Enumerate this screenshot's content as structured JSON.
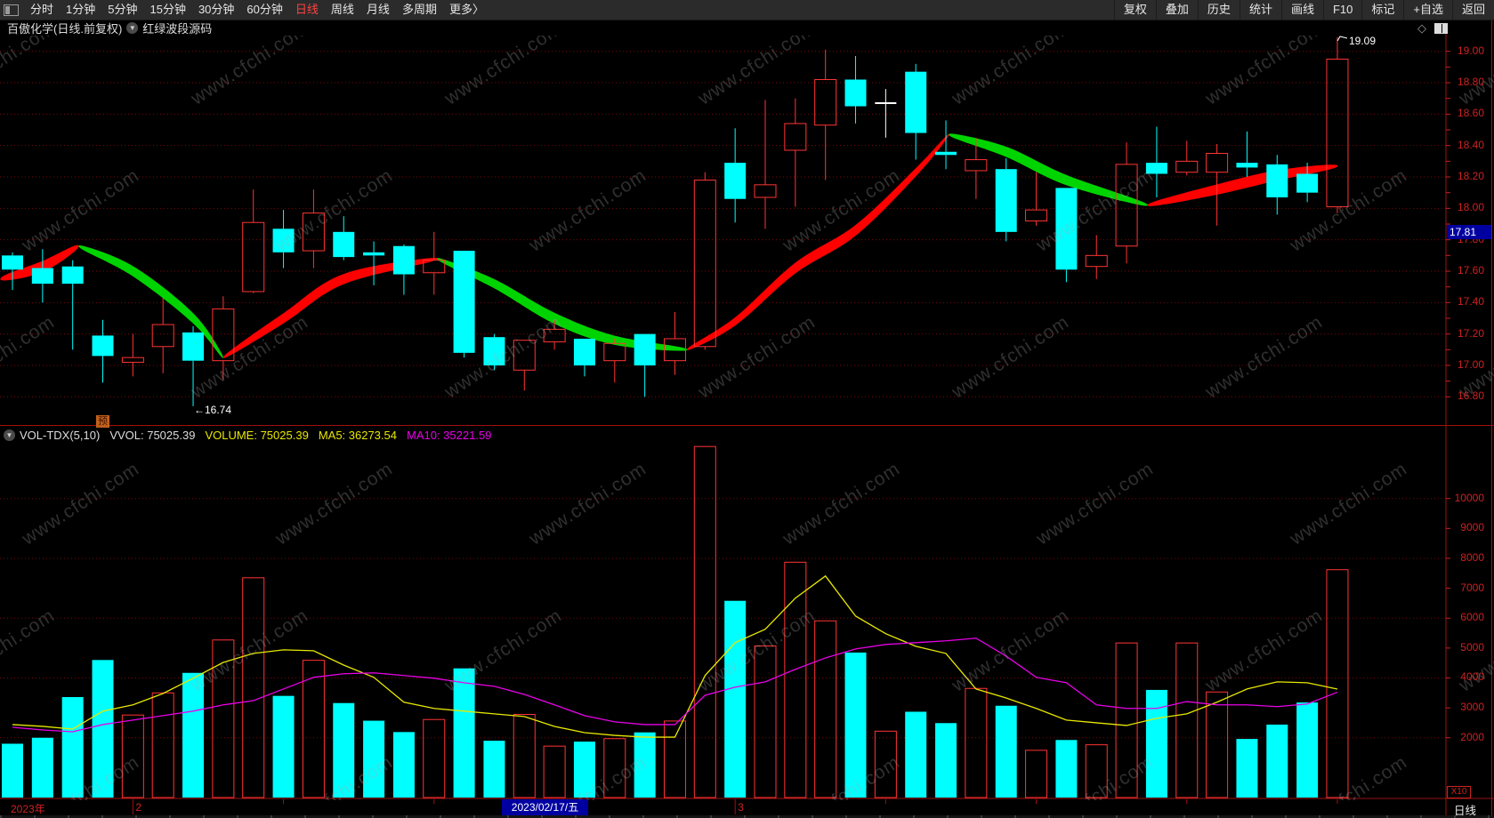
{
  "app": {
    "watermark": "www.cfchi.com"
  },
  "toolbar": {
    "left_items": [
      "分时",
      "1分钟",
      "5分钟",
      "15分钟",
      "30分钟",
      "60分钟",
      "日线",
      "周线",
      "月线",
      "多周期",
      "更多〉"
    ],
    "active_item": "日线",
    "right_items": [
      "复权",
      "叠加",
      "历史",
      "统计",
      "画线",
      "F10",
      "标记",
      "+自选",
      "返回"
    ]
  },
  "title_row": {
    "title": "百傲化学(日线.前复权)",
    "indicator_source": "红绿波段源码"
  },
  "icons": {
    "dropdown": "▼",
    "diamond": "◇"
  },
  "price_pane": {
    "axis_labels": [
      "19.00",
      "18.80",
      "18.60",
      "18.40",
      "18.20",
      "18.00",
      "17.80",
      "17.60",
      "17.40",
      "17.20",
      "17.00",
      "16.80"
    ],
    "price_tag": "17.81",
    "high_annotation": "19.09",
    "low_annotation": "←16.74",
    "signal_badge": "预"
  },
  "volume_pane": {
    "header": {
      "indicator": "VOL-TDX(5,10)",
      "vvol": "VVOL: 75025.39",
      "volume": "VOLUME: 75025.39",
      "ma5": "MA5: 36273.54",
      "ma10": "MA10: 35221.59"
    },
    "axis_labels": [
      "10000",
      "9000",
      "8000",
      "7000",
      "6000",
      "5000",
      "4000",
      "3000",
      "2000"
    ],
    "multiplier": "X10"
  },
  "date_axis": {
    "year_label": "2023年",
    "month_labels": [
      {
        "text": "2",
        "candle_index": 4
      },
      {
        "text": "3",
        "candle_index": 24
      }
    ],
    "minor_tick_indices": [
      9,
      14,
      19,
      29,
      34,
      39,
      44
    ],
    "highlight_date": {
      "text": "2023/02/17/五",
      "candle_index": 16
    }
  },
  "status_bar": {
    "period": "日线"
  },
  "colors": {
    "up": "#ff3434",
    "down": "#00ffff",
    "flat": "#ffffff",
    "ribbon_up": "#ff0000",
    "ribbon_down": "#00d400",
    "ma5": "#e8e800",
    "ma10": "#e800e8",
    "grid": "#7d0606",
    "axis_line": "#a01010",
    "axis_text": "#cc2222",
    "highlight_bg": "#0000a0",
    "badge_bg": "#c2601a",
    "toolbar_active": "#ff4242"
  },
  "chart_data": {
    "type": "candlestick+volume",
    "price_ylim": [
      16.62,
      19.12
    ],
    "price_tick_step": 0.2,
    "volume_ylim": [
      0,
      12400
    ],
    "volume_tick_step": 1000,
    "grid": "dotted",
    "candles": [
      [
        17.7,
        17.72,
        17.48,
        17.61,
        1800
      ],
      [
        17.62,
        17.74,
        17.4,
        17.52,
        2000
      ],
      [
        17.63,
        17.67,
        17.1,
        17.52,
        3360
      ],
      [
        17.19,
        17.29,
        16.89,
        17.06,
        4600
      ],
      [
        17.02,
        17.2,
        16.93,
        17.05,
        2760
      ],
      [
        17.12,
        17.43,
        16.95,
        17.26,
        3500
      ],
      [
        17.21,
        17.25,
        16.74,
        17.03,
        4170
      ],
      [
        17.03,
        17.44,
        16.91,
        17.36,
        5270
      ],
      [
        17.47,
        18.12,
        17.46,
        17.91,
        7350
      ],
      [
        17.87,
        17.99,
        17.62,
        17.72,
        3400
      ],
      [
        17.73,
        18.12,
        17.62,
        17.97,
        4590
      ],
      [
        17.85,
        17.95,
        17.67,
        17.69,
        3160
      ],
      [
        17.72,
        17.79,
        17.51,
        17.7,
        2570
      ],
      [
        17.76,
        17.77,
        17.45,
        17.58,
        2190
      ],
      [
        17.59,
        17.85,
        17.45,
        17.67,
        2610
      ],
      [
        17.73,
        17.73,
        17.05,
        17.08,
        4320
      ],
      [
        17.18,
        17.2,
        16.97,
        17.0,
        1900
      ],
      [
        16.97,
        17.16,
        16.84,
        17.16,
        2780
      ],
      [
        17.15,
        17.29,
        17.1,
        17.23,
        1720
      ],
      [
        17.17,
        17.17,
        16.93,
        17.0,
        1870
      ],
      [
        17.03,
        17.17,
        16.89,
        17.14,
        1970
      ],
      [
        17.2,
        17.2,
        16.8,
        17.0,
        2180
      ],
      [
        17.03,
        17.34,
        16.94,
        17.17,
        2560
      ],
      [
        17.12,
        18.23,
        17.1,
        18.18,
        11740
      ],
      [
        18.29,
        18.51,
        17.91,
        18.06,
        6580
      ],
      [
        18.07,
        18.69,
        17.87,
        18.15,
        5070
      ],
      [
        18.37,
        18.7,
        18.01,
        18.54,
        7870
      ],
      [
        18.53,
        19.01,
        18.18,
        18.82,
        5910
      ],
      [
        18.82,
        18.97,
        18.54,
        18.65,
        4850
      ],
      [
        18.67,
        18.76,
        18.45,
        18.67,
        2220
      ],
      [
        18.87,
        18.92,
        18.31,
        18.48,
        2870
      ],
      [
        18.36,
        18.56,
        18.25,
        18.34,
        2490
      ],
      [
        18.24,
        18.45,
        18.06,
        18.31,
        3650
      ],
      [
        18.25,
        18.32,
        17.79,
        17.85,
        3070
      ],
      [
        17.92,
        18.23,
        17.89,
        17.99,
        1580
      ],
      [
        18.13,
        18.13,
        17.53,
        17.61,
        1925
      ],
      [
        17.63,
        17.83,
        17.55,
        17.7,
        1765
      ],
      [
        17.76,
        18.42,
        17.65,
        18.28,
        5170
      ],
      [
        18.29,
        18.52,
        18.07,
        18.22,
        3600
      ],
      [
        18.23,
        18.43,
        18.21,
        18.3,
        5170
      ],
      [
        18.23,
        18.41,
        17.89,
        18.35,
        3530
      ],
      [
        18.29,
        18.49,
        18.2,
        18.26,
        1960
      ],
      [
        18.28,
        18.34,
        17.96,
        18.07,
        2440
      ],
      [
        18.22,
        18.29,
        18.04,
        18.1,
        3180
      ],
      [
        18.01,
        19.09,
        17.97,
        18.95,
        7620
      ]
    ],
    "vol_ma5": [
      2440,
      2380,
      2290,
      2890,
      3100,
      3480,
      3990,
      4520,
      4820,
      4940,
      4910,
      4430,
      4020,
      3190,
      2980,
      2890,
      2800,
      2710,
      2380,
      2170,
      2080,
      2020,
      2020,
      4080,
      5180,
      5630,
      6670,
      7410,
      6070,
      5480,
      5060,
      4820,
      3630,
      3330,
      2980,
      2590,
      2500,
      2410,
      2650,
      2800,
      3190,
      3630,
      3870,
      3840,
      3627
    ],
    "vol_ma10": [
      2350,
      2260,
      2200,
      2440,
      2590,
      2740,
      2890,
      3100,
      3240,
      3630,
      4020,
      4140,
      4170,
      4080,
      3990,
      3840,
      3720,
      3450,
      3100,
      2740,
      2530,
      2440,
      2440,
      3420,
      3690,
      3870,
      4290,
      4670,
      4970,
      5120,
      5180,
      5240,
      5330,
      4730,
      4020,
      3840,
      3100,
      2980,
      2980,
      3210,
      3100,
      3100,
      3040,
      3130,
      3522
    ],
    "ribbon": [
      {
        "trend": "up",
        "points": [
          [
            -0.4,
            17.55
          ],
          [
            1.0,
            17.63
          ],
          [
            2.2,
            17.76
          ]
        ]
      },
      {
        "trend": "down",
        "points": [
          [
            2.2,
            17.76
          ],
          [
            4.0,
            17.6
          ],
          [
            6.0,
            17.3
          ],
          [
            7.0,
            17.05
          ]
        ]
      },
      {
        "trend": "up",
        "points": [
          [
            7.0,
            17.05
          ],
          [
            9.0,
            17.3
          ],
          [
            11.0,
            17.55
          ],
          [
            14.1,
            17.68
          ]
        ]
      },
      {
        "trend": "down",
        "points": [
          [
            14.1,
            17.68
          ],
          [
            16.0,
            17.52
          ],
          [
            18.0,
            17.3
          ],
          [
            20.0,
            17.16
          ],
          [
            22.4,
            17.1
          ]
        ]
      },
      {
        "trend": "up",
        "points": [
          [
            22.4,
            17.1
          ],
          [
            24.0,
            17.28
          ],
          [
            26.0,
            17.62
          ],
          [
            28.0,
            17.86
          ],
          [
            30.0,
            18.23
          ],
          [
            31.1,
            18.47
          ]
        ]
      },
      {
        "trend": "down",
        "points": [
          [
            31.1,
            18.47
          ],
          [
            33.0,
            18.36
          ],
          [
            35.0,
            18.18
          ],
          [
            37.7,
            18.02
          ]
        ]
      },
      {
        "trend": "up",
        "points": [
          [
            37.7,
            18.02
          ],
          [
            40.0,
            18.12
          ],
          [
            42.0,
            18.21
          ],
          [
            44.0,
            18.27
          ]
        ]
      }
    ]
  }
}
